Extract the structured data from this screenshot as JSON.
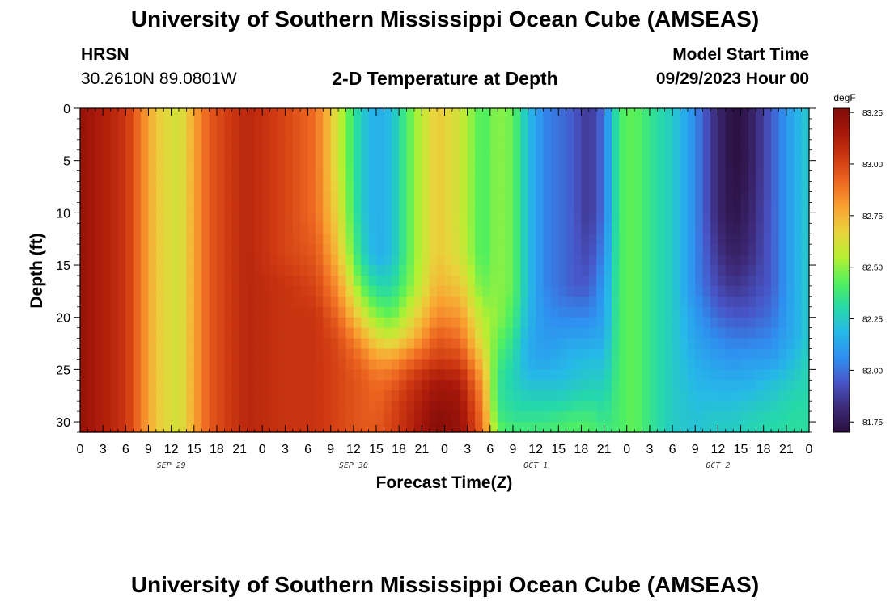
{
  "title": "University of Southern Mississippi Ocean Cube (AMSEAS)",
  "footer_title": "University of Southern Mississippi Ocean Cube (AMSEAS)",
  "station": {
    "name": "HRSN",
    "coords": "30.2610N  89.0801W"
  },
  "model_start": {
    "label": "Model Start Time",
    "value": "09/29/2023 Hour 00"
  },
  "chart_data": {
    "type": "heatmap",
    "title": "2-D Temperature at Depth",
    "xlabel": "Forecast Time(Z)",
    "ylabel": "Depth (ft)",
    "x_range_hours": [
      0,
      96
    ],
    "ylim": [
      0,
      31
    ],
    "x_tick_labels": [
      "0",
      "3",
      "6",
      "9",
      "12",
      "15",
      "18",
      "21",
      "0",
      "3",
      "6",
      "9",
      "12",
      "15",
      "18",
      "21",
      "0",
      "3",
      "6",
      "9",
      "12",
      "15",
      "18",
      "21",
      "0",
      "3",
      "6",
      "9",
      "12",
      "15",
      "18",
      "21",
      "0"
    ],
    "day_labels": [
      {
        "label": "SEP 29",
        "hour": 12
      },
      {
        "label": "SEP 30",
        "hour": 36
      },
      {
        "label": "OCT 1",
        "hour": 60
      },
      {
        "label": "OCT 2",
        "hour": 84
      }
    ],
    "y_ticks": [
      0,
      5,
      10,
      15,
      20,
      25,
      30
    ],
    "colorbar": {
      "unit": "degF",
      "min": 81.7,
      "max": 83.27,
      "tick_labels": [
        "83.25",
        "83.00",
        "82.75",
        "82.50",
        "82.25",
        "82.00",
        "81.75"
      ],
      "tick_values": [
        83.25,
        83.0,
        82.75,
        82.5,
        82.25,
        82.0,
        81.75
      ],
      "colors": [
        "#2a0f3e",
        "#3d2a78",
        "#4856c8",
        "#2f8ff0",
        "#26b8e8",
        "#26d9a8",
        "#52f05e",
        "#b4f032",
        "#e8d43c",
        "#f9a432",
        "#ee6a22",
        "#cf3a12",
        "#a8180a",
        "#7e0c08"
      ]
    },
    "depths_ft": [
      0,
      5,
      10,
      14,
      17,
      20,
      22,
      24,
      26,
      28,
      30,
      31
    ],
    "hours": [
      0,
      6,
      10,
      13,
      17,
      22,
      27,
      31,
      34,
      37,
      39,
      41,
      44,
      47,
      50,
      53,
      55,
      57,
      59,
      61,
      63,
      65,
      67,
      69,
      71,
      73,
      75,
      78,
      81,
      84,
      86,
      88,
      91,
      94,
      96
    ],
    "temperature_degF": [
      [
        83.2,
        83.05,
        82.7,
        82.6,
        82.95,
        83.1,
        83.0,
        82.9,
        82.6,
        82.25,
        82.15,
        82.2,
        82.5,
        82.7,
        82.6,
        82.4,
        82.5,
        82.45,
        82.2,
        82.05,
        82.0,
        81.95,
        81.85,
        82.0,
        82.4,
        82.45,
        82.35,
        82.25,
        82.05,
        81.8,
        81.7,
        81.75,
        81.95,
        82.15,
        82.25
      ],
      [
        83.2,
        83.05,
        82.7,
        82.6,
        82.95,
        83.1,
        83.0,
        82.9,
        82.6,
        82.25,
        82.15,
        82.2,
        82.5,
        82.7,
        82.6,
        82.4,
        82.5,
        82.45,
        82.2,
        82.05,
        82.0,
        81.95,
        81.85,
        82.0,
        82.4,
        82.45,
        82.35,
        82.25,
        82.05,
        81.8,
        81.7,
        81.75,
        81.95,
        82.15,
        82.25
      ],
      [
        83.2,
        83.05,
        82.7,
        82.6,
        82.95,
        83.1,
        83.0,
        82.9,
        82.65,
        82.25,
        82.15,
        82.2,
        82.5,
        82.7,
        82.6,
        82.4,
        82.5,
        82.45,
        82.2,
        82.05,
        82.0,
        81.95,
        81.85,
        82.0,
        82.4,
        82.45,
        82.35,
        82.25,
        82.05,
        81.8,
        81.72,
        81.78,
        81.95,
        82.15,
        82.25
      ],
      [
        83.2,
        83.05,
        82.7,
        82.6,
        82.95,
        83.1,
        83.0,
        82.95,
        82.72,
        82.3,
        82.15,
        82.2,
        82.5,
        82.7,
        82.62,
        82.4,
        82.5,
        82.45,
        82.2,
        82.05,
        82.0,
        81.95,
        81.9,
        82.05,
        82.4,
        82.45,
        82.35,
        82.25,
        82.05,
        81.85,
        81.78,
        81.82,
        81.95,
        82.15,
        82.25
      ],
      [
        83.2,
        83.05,
        82.7,
        82.6,
        82.95,
        83.1,
        83.05,
        83.0,
        82.82,
        82.45,
        82.3,
        82.3,
        82.52,
        82.75,
        82.7,
        82.45,
        82.5,
        82.45,
        82.2,
        82.05,
        82.0,
        81.95,
        81.95,
        82.1,
        82.4,
        82.45,
        82.35,
        82.25,
        82.05,
        81.9,
        81.85,
        81.88,
        81.95,
        82.15,
        82.25
      ],
      [
        83.2,
        83.05,
        82.7,
        82.6,
        82.95,
        83.1,
        83.05,
        83.05,
        82.92,
        82.65,
        82.5,
        82.45,
        82.65,
        82.85,
        82.82,
        82.55,
        82.5,
        82.4,
        82.18,
        82.08,
        82.05,
        82.05,
        82.05,
        82.12,
        82.4,
        82.45,
        82.35,
        82.25,
        82.1,
        81.98,
        81.95,
        81.95,
        82.0,
        82.15,
        82.25
      ],
      [
        83.2,
        83.05,
        82.7,
        82.6,
        82.95,
        83.1,
        83.05,
        83.05,
        82.98,
        82.8,
        82.65,
        82.6,
        82.75,
        82.95,
        82.9,
        82.6,
        82.45,
        82.35,
        82.15,
        82.1,
        82.1,
        82.12,
        82.12,
        82.15,
        82.4,
        82.45,
        82.35,
        82.25,
        82.12,
        82.05,
        82.02,
        82.02,
        82.05,
        82.15,
        82.25
      ],
      [
        83.2,
        83.05,
        82.7,
        82.6,
        82.95,
        83.1,
        83.05,
        83.05,
        83.0,
        82.9,
        82.8,
        82.8,
        82.92,
        83.02,
        83.0,
        82.7,
        82.4,
        82.3,
        82.15,
        82.12,
        82.15,
        82.18,
        82.2,
        82.2,
        82.4,
        82.45,
        82.35,
        82.25,
        82.15,
        82.1,
        82.08,
        82.1,
        82.1,
        82.2,
        82.28
      ],
      [
        83.2,
        83.05,
        82.7,
        82.6,
        82.95,
        83.1,
        83.05,
        83.05,
        83.0,
        82.95,
        82.9,
        82.92,
        83.05,
        83.15,
        83.12,
        82.8,
        82.35,
        82.28,
        82.2,
        82.2,
        82.2,
        82.22,
        82.25,
        82.25,
        82.4,
        82.45,
        82.35,
        82.25,
        82.18,
        82.15,
        82.15,
        82.15,
        82.2,
        82.25,
        82.3
      ],
      [
        83.2,
        83.05,
        82.7,
        82.6,
        82.95,
        83.1,
        83.05,
        83.05,
        83.0,
        82.95,
        82.92,
        82.98,
        83.1,
        83.2,
        83.18,
        82.85,
        82.35,
        82.3,
        82.28,
        82.28,
        82.28,
        82.3,
        82.32,
        82.3,
        82.4,
        82.45,
        82.35,
        82.25,
        82.2,
        82.2,
        82.2,
        82.22,
        82.25,
        82.3,
        82.3
      ],
      [
        83.2,
        83.05,
        82.7,
        82.6,
        82.95,
        83.1,
        83.05,
        83.05,
        83.0,
        82.95,
        82.95,
        83.0,
        83.12,
        83.25,
        83.2,
        82.9,
        82.4,
        82.35,
        82.35,
        82.35,
        82.38,
        82.4,
        82.4,
        82.35,
        82.4,
        82.45,
        82.35,
        82.25,
        82.22,
        82.25,
        82.25,
        82.28,
        82.3,
        82.32,
        82.32
      ],
      [
        83.2,
        83.05,
        82.7,
        82.6,
        82.95,
        83.1,
        83.05,
        83.05,
        83.0,
        82.95,
        82.95,
        83.0,
        83.12,
        83.25,
        83.2,
        82.9,
        82.45,
        82.4,
        82.4,
        82.4,
        82.4,
        82.42,
        82.42,
        82.38,
        82.4,
        82.45,
        82.35,
        82.25,
        82.22,
        82.25,
        82.25,
        82.28,
        82.3,
        82.32,
        82.32
      ]
    ]
  }
}
